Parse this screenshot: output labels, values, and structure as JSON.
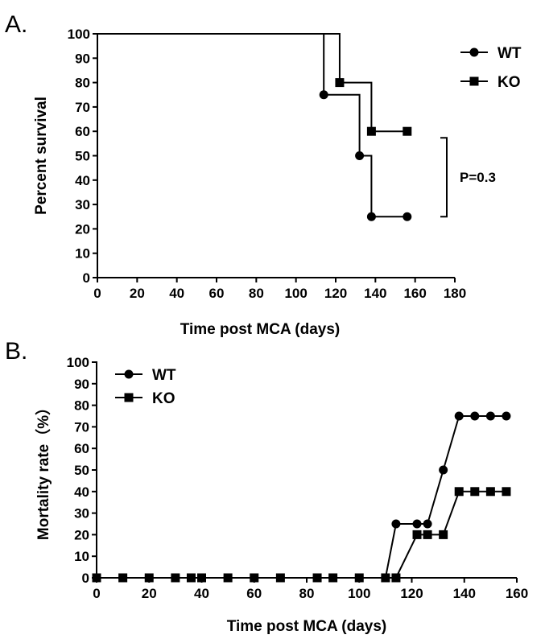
{
  "chart_data": [
    {
      "type": "line",
      "panel_label": "A.",
      "xlabel": "Time post MCA (days)",
      "ylabel": "Percent survival",
      "xlim": [
        0,
        180
      ],
      "ylim": [
        0,
        100
      ],
      "xticks": [
        "0",
        "20",
        "40",
        "60",
        "80",
        "100",
        "120",
        "140",
        "160",
        "180"
      ],
      "yticks": [
        "0",
        "10",
        "20",
        "30",
        "40",
        "50",
        "60",
        "70",
        "80",
        "90",
        "100"
      ],
      "xtick_values": [
        0,
        20,
        40,
        60,
        80,
        100,
        120,
        140,
        160,
        180
      ],
      "ytick_values": [
        0,
        10,
        20,
        30,
        40,
        50,
        60,
        70,
        80,
        90,
        100
      ],
      "step": true,
      "legend_position": "top-right",
      "series": [
        {
          "name": "WT",
          "marker": "circle",
          "x": [
            0,
            114,
            132,
            138,
            156
          ],
          "y": [
            100,
            75,
            50,
            25,
            25
          ],
          "markers_x": [
            114,
            132,
            138,
            156
          ],
          "markers_y": [
            75,
            50,
            25,
            25
          ]
        },
        {
          "name": "KO",
          "marker": "square",
          "x": [
            0,
            122,
            138,
            156
          ],
          "y": [
            100,
            80,
            60,
            60
          ],
          "markers_x": [
            122,
            138,
            156
          ],
          "markers_y": [
            80,
            60,
            60
          ]
        }
      ],
      "annotation": {
        "text": "P=0.3",
        "bracket_y": [
          60,
          25
        ]
      }
    },
    {
      "type": "line",
      "panel_label": "B.",
      "xlabel": "Time post MCA (days)",
      "ylabel": "Mortality rate（%）",
      "xlim": [
        0,
        160
      ],
      "ylim": [
        0,
        100
      ],
      "xticks": [
        "0",
        "20",
        "40",
        "60",
        "80",
        "100",
        "120",
        "140",
        "160"
      ],
      "yticks": [
        "0",
        "10",
        "20",
        "30",
        "40",
        "50",
        "60",
        "70",
        "80",
        "90",
        "100"
      ],
      "xtick_values": [
        0,
        20,
        40,
        60,
        80,
        100,
        120,
        140,
        160
      ],
      "ytick_values": [
        0,
        10,
        20,
        30,
        40,
        50,
        60,
        70,
        80,
        90,
        100
      ],
      "step": false,
      "legend_position": "top-left",
      "series": [
        {
          "name": "WT",
          "marker": "circle",
          "x": [
            0,
            10,
            20,
            30,
            36,
            40,
            50,
            60,
            70,
            84,
            90,
            100,
            110,
            114,
            122,
            126,
            132,
            138,
            144,
            150,
            156
          ],
          "y": [
            0,
            0,
            0,
            0,
            0,
            0,
            0,
            0,
            0,
            0,
            0,
            0,
            0,
            25,
            25,
            25,
            50,
            75,
            75,
            75,
            75
          ]
        },
        {
          "name": "KO",
          "marker": "square",
          "x": [
            0,
            10,
            20,
            30,
            36,
            40,
            50,
            60,
            70,
            84,
            90,
            100,
            110,
            114,
            122,
            126,
            132,
            138,
            144,
            150,
            156
          ],
          "y": [
            0,
            0,
            0,
            0,
            0,
            0,
            0,
            0,
            0,
            0,
            0,
            0,
            0,
            0,
            20,
            20,
            20,
            40,
            40,
            40,
            40
          ]
        }
      ]
    }
  ]
}
